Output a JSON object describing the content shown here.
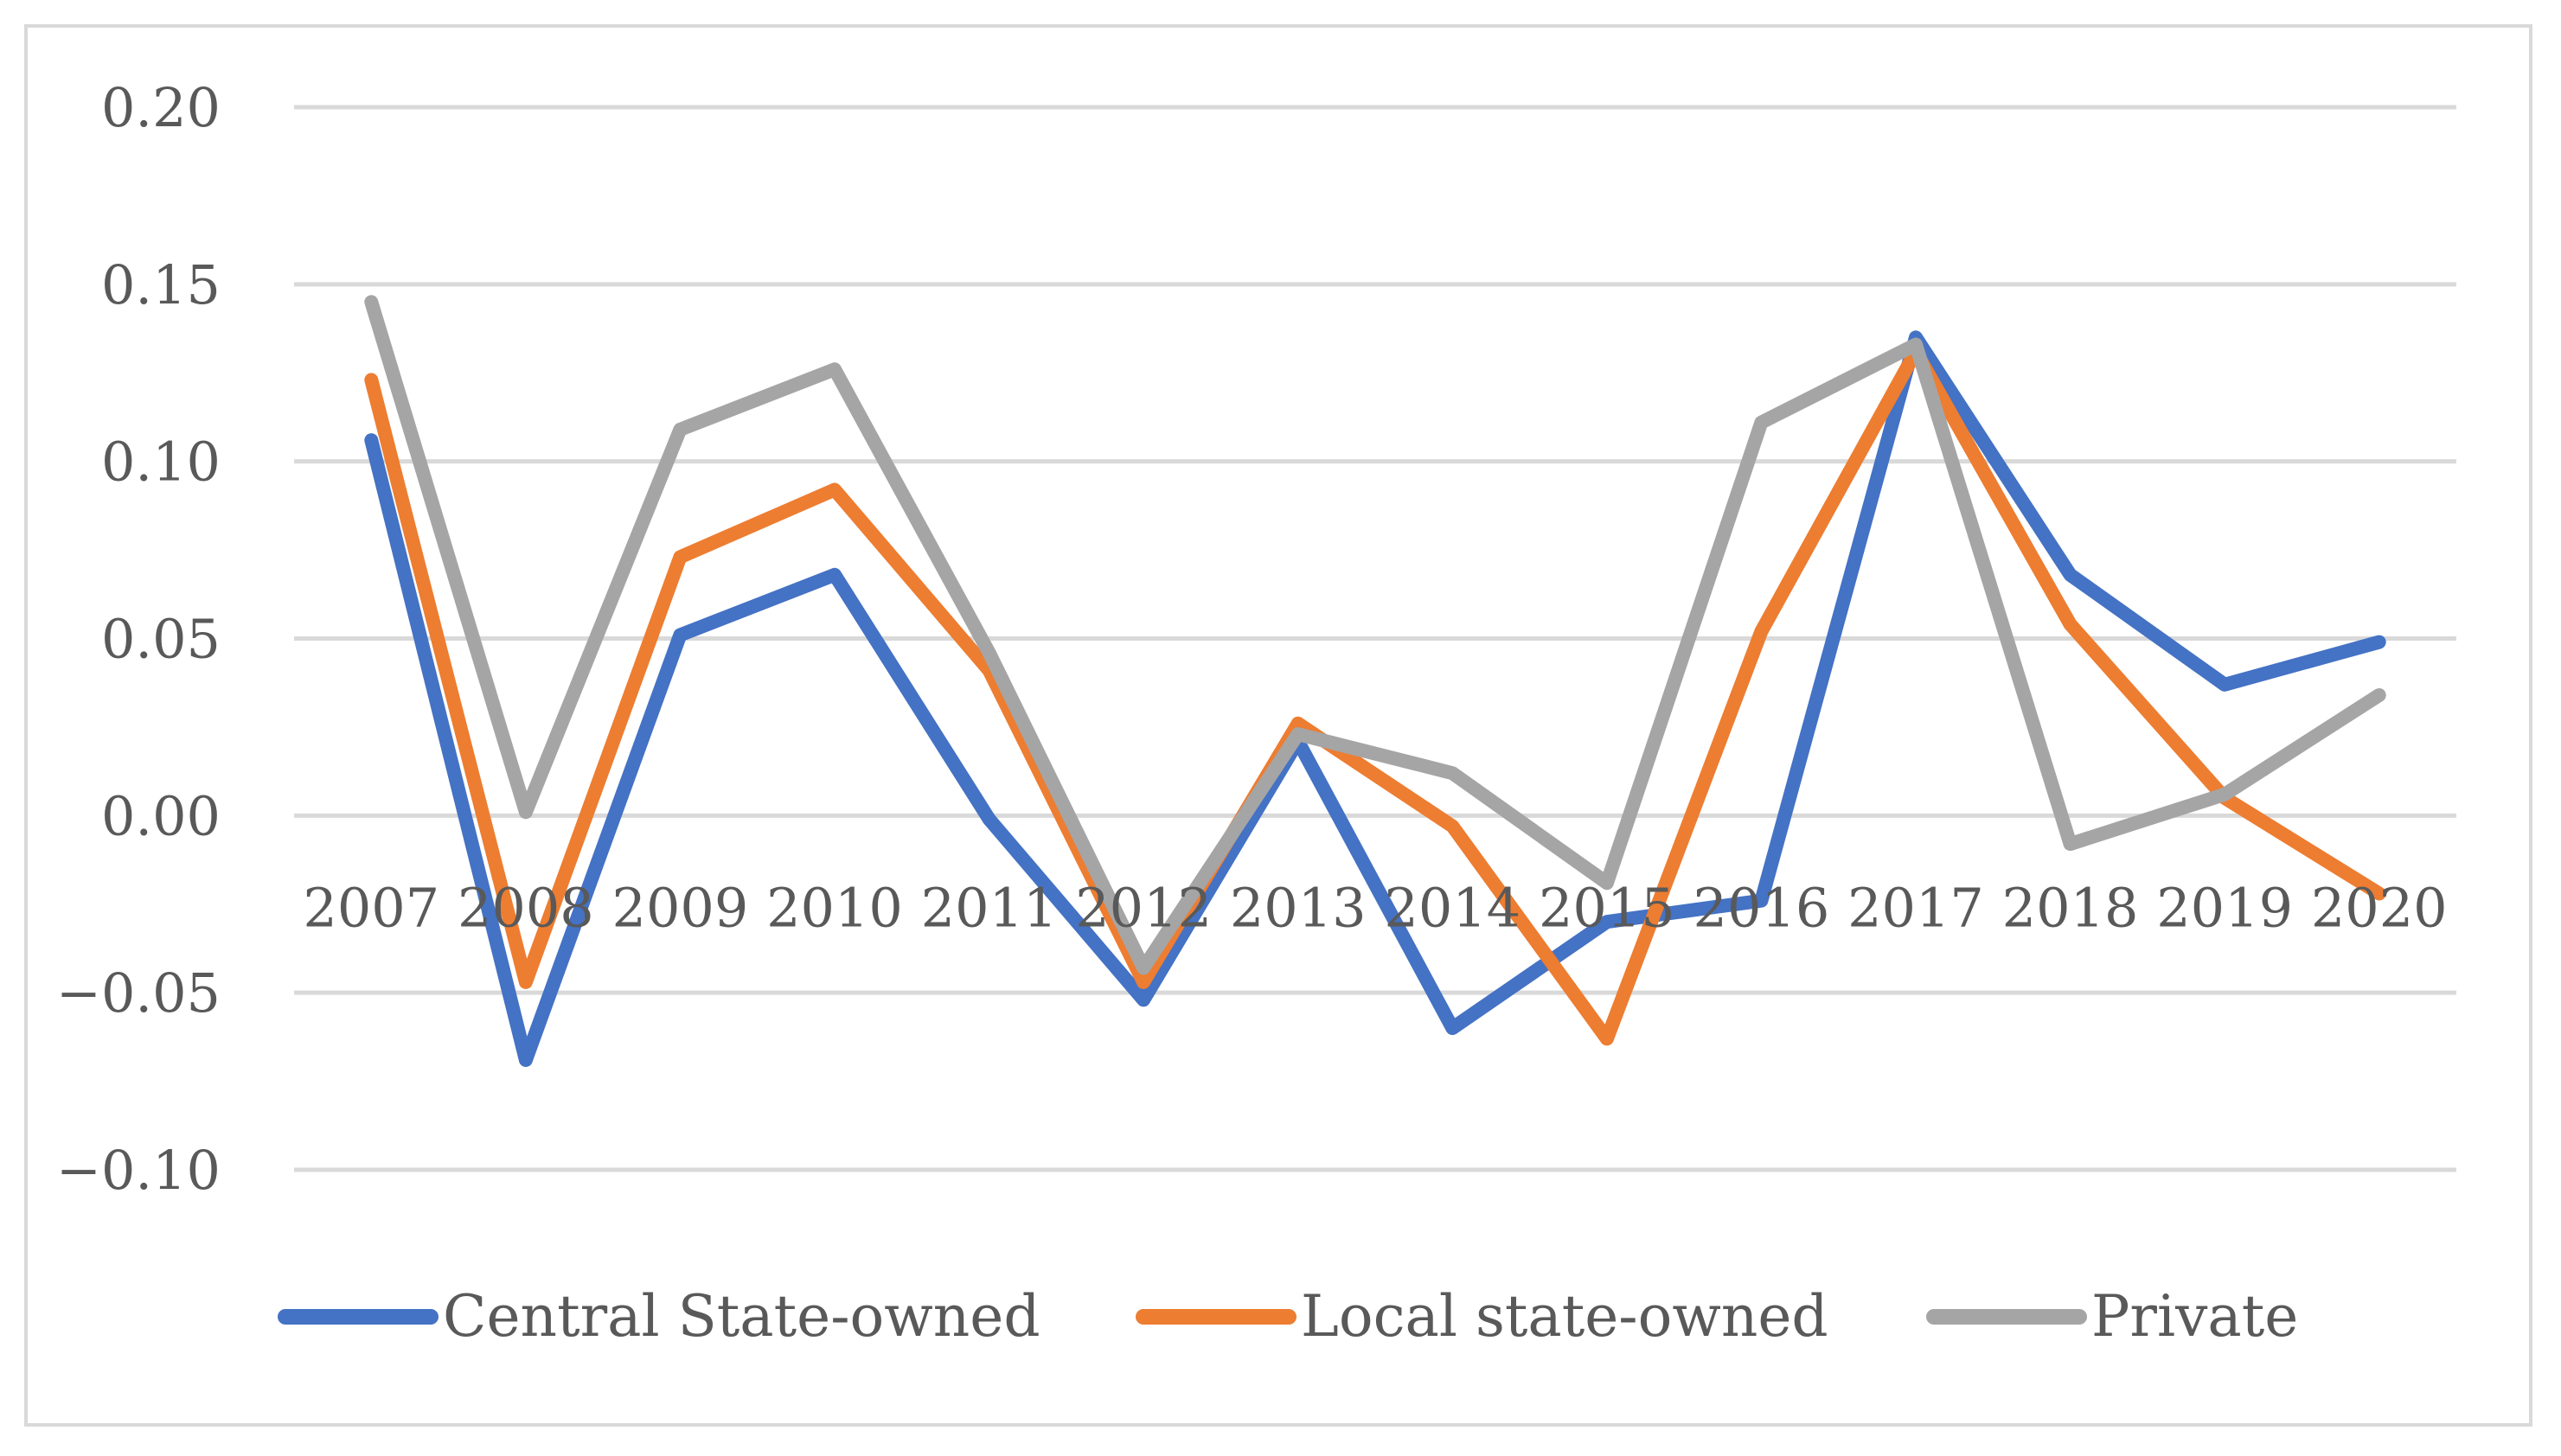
{
  "chart_data": {
    "type": "line",
    "title": "",
    "xlabel": "",
    "ylabel": "",
    "categories": [
      "2007",
      "2008",
      "2009",
      "2010",
      "2011",
      "2012",
      "2013",
      "2014",
      "2015",
      "2016",
      "2017",
      "2018",
      "2019",
      "2020"
    ],
    "ylim": [
      -0.1,
      0.2
    ],
    "yticks": [
      0.2,
      0.15,
      0.1,
      0.05,
      0.0,
      -0.05,
      -0.1
    ],
    "ytick_labels": [
      "0.20",
      "0.15",
      "0.10",
      "0.05",
      "0.00",
      "−0.05",
      "−0.10"
    ],
    "grid": true,
    "legend_position": "bottom",
    "series": [
      {
        "name": "Central State-owned",
        "color": "#4472c4",
        "values": [
          0.106,
          -0.069,
          0.051,
          0.068,
          -0.001,
          -0.052,
          0.021,
          -0.06,
          -0.03,
          -0.024,
          0.135,
          0.068,
          0.037,
          0.049
        ]
      },
      {
        "name": "Local state-owned",
        "color": "#ed7d31",
        "values": [
          0.123,
          -0.047,
          0.073,
          0.092,
          0.041,
          -0.047,
          0.026,
          -0.003,
          -0.063,
          0.052,
          0.131,
          0.054,
          0.005,
          -0.022
        ]
      },
      {
        "name": "Private",
        "color": "#a5a5a5",
        "values": [
          0.145,
          0.001,
          0.109,
          0.126,
          0.046,
          -0.043,
          0.023,
          0.012,
          -0.019,
          0.111,
          0.133,
          -0.008,
          0.006,
          0.034
        ]
      }
    ]
  }
}
